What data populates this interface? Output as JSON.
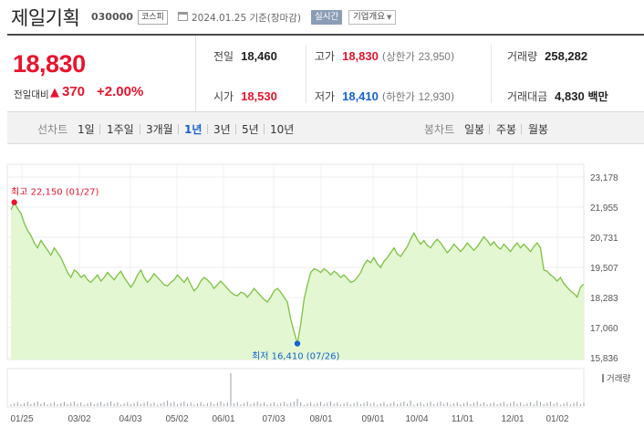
{
  "header": {
    "stock_name": "제일기획",
    "stock_code": "030000",
    "market": "코스피",
    "date": "2024.01.25",
    "date_suffix": "기준(장마감)",
    "realtime_label": "실시간",
    "overview_label": "기업개요"
  },
  "quote": {
    "price": "18,830",
    "change_label": "전일대비",
    "change_value": "370",
    "change_pct": "+2.00%",
    "prev_close_label": "전일",
    "prev_close": "18,460",
    "high_label": "고가",
    "high": "18,830",
    "upper_limit_label": "상한가",
    "upper_limit": "23,950",
    "volume_label": "거래량",
    "volume": "258,282",
    "open_label": "시가",
    "open": "18,530",
    "low_label": "저가",
    "low": "18,410",
    "lower_limit_label": "하한가",
    "lower_limit": "12,930",
    "amount_label": "거래대금",
    "amount": "4,830",
    "amount_unit": "백만"
  },
  "tabs": {
    "line_label": "선차트",
    "line_periods": [
      "1일",
      "1주일",
      "3개월",
      "1년",
      "3년",
      "5년",
      "10년"
    ],
    "active_period": "1년",
    "candle_label": "봉차트",
    "candle_periods": [
      "일봉",
      "주봉",
      "월봉"
    ]
  },
  "colors": {
    "up": "#e8142d",
    "down": "#1463cf",
    "line": "#7dc241",
    "fill": "#e3f7d2"
  },
  "chart_data": {
    "type": "area",
    "ylim": [
      15836,
      23178
    ],
    "y_ticks": [
      "23,178",
      "21,955",
      "20,731",
      "19,507",
      "18,283",
      "17,060",
      "15,836"
    ],
    "x_labels": [
      "01/25",
      "03/02",
      "04/03",
      "05/02",
      "06/01",
      "07/03",
      "08/01",
      "09/01",
      "10/04",
      "11/01",
      "12/01",
      "01/02"
    ],
    "high_label": "최고 22,150 (01/27)",
    "low_label": "최저 16,410 (07/26)",
    "volume_legend": "거래량",
    "series": [
      {
        "values": [
          21850,
          22150,
          21900,
          21700,
          21300,
          21000,
          20800,
          20500,
          20300,
          20600,
          20400,
          20200,
          20000,
          20300,
          20100,
          19900,
          19600,
          19300,
          19100,
          19400,
          19300,
          19100,
          19200,
          19000,
          18900,
          19050,
          19200,
          18950,
          19100,
          19300,
          19150,
          19000,
          19200,
          19350,
          19100,
          18900,
          18700,
          18900,
          19200,
          19400,
          19100,
          18900,
          19050,
          19250,
          19100,
          18950,
          18800,
          18750,
          18900,
          19000,
          19200,
          19050,
          18900,
          19100,
          18800,
          18550,
          18700,
          18950,
          19100,
          19000,
          18850,
          18650,
          18800,
          18950,
          18800,
          18650,
          18500,
          18400,
          18350,
          18500,
          18450,
          18300,
          18450,
          18650,
          18500,
          18350,
          18200,
          18100,
          18300,
          18550,
          18650,
          18500,
          18300,
          18100,
          17400,
          16900,
          16410,
          17200,
          18200,
          18800,
          19300,
          19450,
          19400,
          19300,
          19450,
          19350,
          19200,
          19350,
          19250,
          19100,
          19200,
          19050,
          18900,
          18950,
          19100,
          19300,
          19600,
          19800,
          19700,
          19900,
          19650,
          19500,
          19750,
          19900,
          20100,
          20300,
          20050,
          19950,
          20150,
          20350,
          20650,
          20900,
          20650,
          20450,
          20600,
          20400,
          20300,
          20500,
          20650,
          20500,
          20300,
          20100,
          20250,
          20450,
          20300,
          20150,
          20300,
          20500,
          20350,
          20200,
          20350,
          20550,
          20750,
          20600,
          20400,
          20550,
          20350,
          20250,
          20450,
          20300,
          20150,
          20350,
          20500,
          20300,
          20450,
          20300,
          20150,
          20350,
          20500,
          20300,
          19400,
          19350,
          19200,
          19100,
          18950,
          19100,
          18850,
          18700,
          18550,
          18450,
          18300,
          18700,
          18830
        ]
      }
    ]
  }
}
